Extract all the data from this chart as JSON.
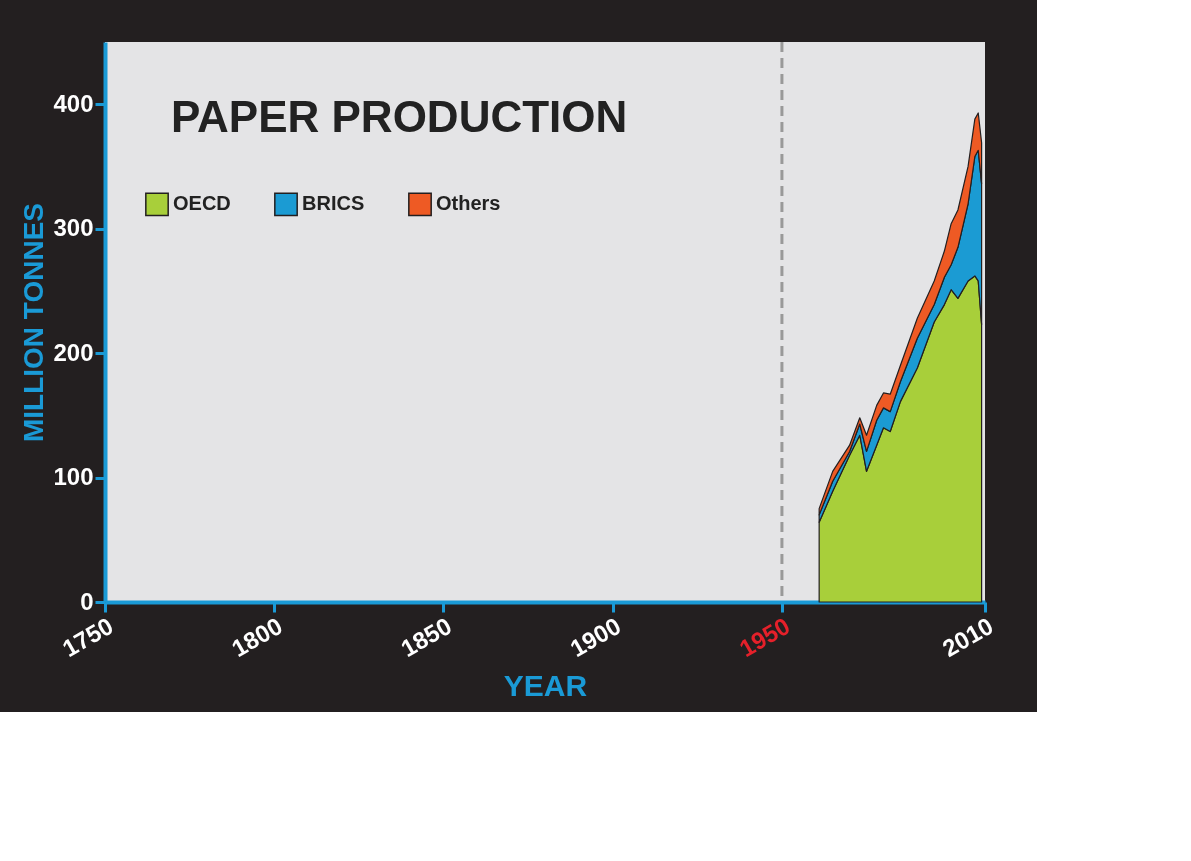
{
  "chart_data": {
    "type": "area",
    "title": "PAPER PRODUCTION",
    "xlabel": "YEAR",
    "ylabel": "MILLION TONNES",
    "x": [
      1961,
      1965,
      1970,
      1973,
      1975,
      1978,
      1980,
      1982,
      1985,
      1990,
      1995,
      1998,
      2000,
      2002,
      2005,
      2007,
      2008,
      2009
    ],
    "stacked": true,
    "series": [
      {
        "name": "OECD",
        "color": "#a8cf3a",
        "values": [
          64,
          89,
          118,
          134,
          105,
          126,
          140,
          137,
          161,
          188,
          225,
          239,
          251,
          244,
          258,
          262,
          258,
          223
        ]
      },
      {
        "name": "BRICS",
        "color": "#1b9bd3",
        "values": [
          6,
          8,
          3,
          9,
          16,
          20,
          16,
          16,
          16,
          24,
          14,
          22,
          20,
          41,
          62,
          96,
          105,
          113
        ]
      },
      {
        "name": "Others",
        "color": "#ee5a24",
        "values": [
          5,
          8,
          5,
          5,
          13,
          12,
          12,
          14,
          13,
          16,
          19,
          21,
          33,
          30,
          30,
          30,
          30,
          33
        ]
      }
    ],
    "xlim": [
      1750,
      2010
    ],
    "xticks": [
      1750,
      1800,
      1850,
      1900,
      1950,
      2010
    ],
    "ylim": [
      0,
      450
    ],
    "yticks": [
      0,
      100,
      200,
      300,
      400
    ],
    "ref_lines": [
      {
        "axis": "x",
        "value": 1950,
        "color": "#999999",
        "line_style": "dashed"
      }
    ],
    "legend": "top left",
    "grid": false
  }
}
